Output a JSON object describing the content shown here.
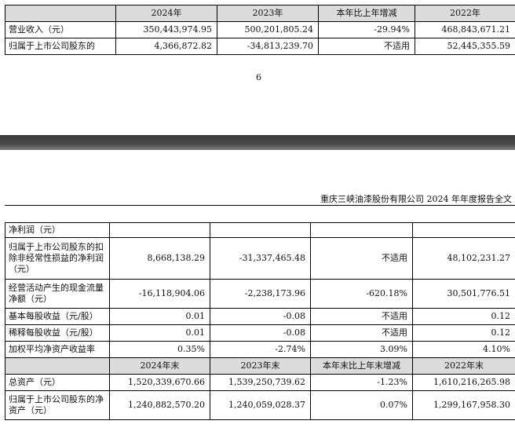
{
  "top_table": {
    "headers": [
      "",
      "2024年",
      "2023年",
      "本年比上年增减",
      "2022年"
    ],
    "rows": [
      {
        "label": "营业收入（元）",
        "y2024": "350,443,974.95",
        "y2023": "500,201,805.24",
        "change": "-29.94%",
        "y2022": "468,843,671.21"
      },
      {
        "label": "归属于上市公司股东的",
        "y2024": "4,366,872.82",
        "y2023": "-34,813,239.70",
        "change": "不适用",
        "y2022": "52,445,355.59"
      }
    ]
  },
  "page_number": "6",
  "doc_header": "重庆三峡油漆股份有限公司 2024 年年度报告全文",
  "main_table": {
    "section_label": "净利润（元）",
    "rows": [
      {
        "label": "归属于上市公司股东的扣除非经常性损益的净利润（元）",
        "y2024": "8,668,138.29",
        "y2023": "-31,337,465.48",
        "change": "不适用",
        "y2022": "48,102,231.27"
      },
      {
        "label": "经营活动产生的现金流量净额（元）",
        "y2024": "-16,118,904.06",
        "y2023": "-2,238,173.96",
        "change": "-620.18%",
        "y2022": "30,501,776.51"
      },
      {
        "label": "基本每股收益（元/股）",
        "y2024": "0.01",
        "y2023": "-0.08",
        "change": "不适用",
        "y2022": "0.12"
      },
      {
        "label": "稀释每股收益（元/股）",
        "y2024": "0.01",
        "y2023": "-0.08",
        "change": "不适用",
        "y2022": "0.12"
      },
      {
        "label": "加权平均净资产收益率",
        "y2024": "0.35%",
        "y2023": "-2.74%",
        "change": "3.09%",
        "y2022": "4.10%"
      }
    ],
    "end_headers": [
      "",
      "2024年末",
      "2023年末",
      "本年末比上年末增减",
      "2022年末"
    ],
    "end_rows": [
      {
        "label": "总资产（元）",
        "y2024": "1,520,339,670.66",
        "y2023": "1,539,250,739.62",
        "change": "-1.23%",
        "y2022": "1,610,216,265.98"
      },
      {
        "label": "归属于上市公司股东的净资产（元）",
        "y2024": "1,240,882,570.20",
        "y2023": "1,240,059,028.37",
        "change": "0.07%",
        "y2022": "1,299,167,958.30"
      }
    ]
  }
}
